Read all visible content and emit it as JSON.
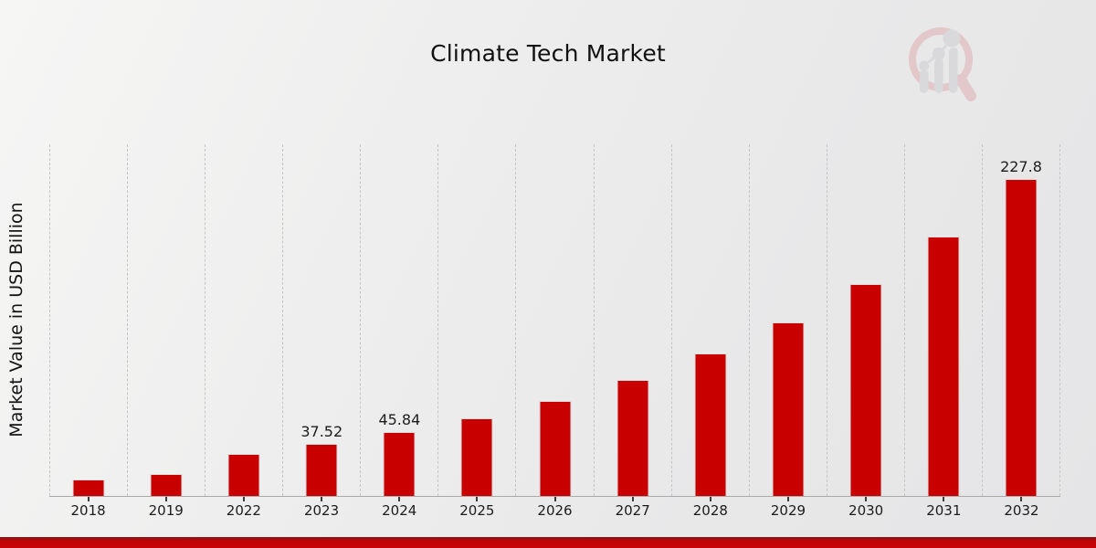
{
  "title": "Climate Tech Market",
  "ylabel": "Market Value in USD Billion",
  "colors": {
    "bar": "#c80000",
    "banner_red": "#c30404",
    "background": "#ebebeb",
    "gridline": "#c6c6c6",
    "axis_line": "#a9a9a9",
    "text": "#1a1a1a",
    "logo_ring_pink": "#dfaeb2",
    "logo_bars_gray": "#cdced2"
  },
  "watermark_icon": "magnifier-growth-chart-logo",
  "chart_data": {
    "type": "bar",
    "title": "Climate Tech Market",
    "xlabel": "",
    "ylabel": "Market Value in USD Billion",
    "unit": "USD Billion",
    "categories": [
      "2018",
      "2019",
      "2022",
      "2023",
      "2024",
      "2025",
      "2026",
      "2027",
      "2028",
      "2029",
      "2030",
      "2031",
      "2032"
    ],
    "values": [
      11.8,
      15.8,
      30.2,
      37.52,
      45.84,
      56.0,
      68.4,
      83.6,
      102.2,
      124.9,
      152.6,
      186.5,
      227.8
    ],
    "data_labels": [
      "",
      "",
      "",
      "37.52",
      "45.84",
      "",
      "",
      "",
      "",
      "",
      "",
      "",
      "227.8"
    ],
    "ylim": [
      0,
      252
    ],
    "bar_color": "#c80000",
    "grid": "vertical-dashed",
    "legend": "none",
    "note": "years 2020 and 2021 not shown on axis"
  }
}
